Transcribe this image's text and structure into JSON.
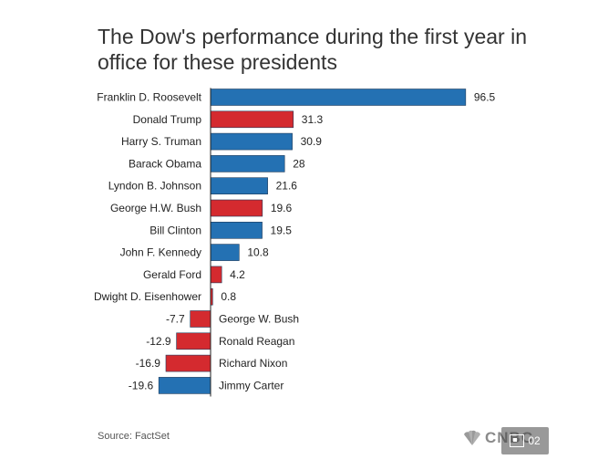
{
  "chart_data": {
    "type": "bar",
    "orientation": "horizontal",
    "title": "The Dow's performance during the first year in office for these presidents",
    "categories": [
      "Franklin D. Roosevelt",
      "Donald Trump",
      "Harry S. Truman",
      "Barack Obama",
      "Lyndon B. Johnson",
      "George H.W. Bush",
      "Bill Clinton",
      "John F. Kennedy",
      "Gerald Ford",
      "Dwight D. Eisenhower",
      "George W. Bush",
      "Ronald Reagan",
      "Richard Nixon",
      "Jimmy Carter"
    ],
    "values": [
      96.5,
      31.3,
      30.9,
      28,
      21.6,
      19.6,
      19.5,
      10.8,
      4.2,
      0.8,
      -7.7,
      -12.9,
      -16.9,
      -19.6
    ],
    "value_labels": [
      "96.5",
      "31.3",
      "30.9",
      "28",
      "21.6",
      "19.6",
      "19.5",
      "10.8",
      "4.2",
      "0.8",
      "-7.7",
      "-12.9",
      "-16.9",
      "-19.6"
    ],
    "party": [
      "dem",
      "rep",
      "dem",
      "dem",
      "dem",
      "rep",
      "dem",
      "dem",
      "rep",
      "rep",
      "rep",
      "rep",
      "rep",
      "dem"
    ],
    "colors": {
      "dem": "#2471b3",
      "rep": "#d42a2f",
      "edge": "#1f3b5a",
      "axis": "#222222"
    },
    "xlim": [
      -20,
      100
    ],
    "grid": false,
    "legend": "none"
  },
  "footer": {
    "source": "Source: FactSet",
    "logo_text": "CNBC",
    "badge_text": "02"
  },
  "icons": {
    "logo": "peacock-icon",
    "badge": "image-icon"
  }
}
